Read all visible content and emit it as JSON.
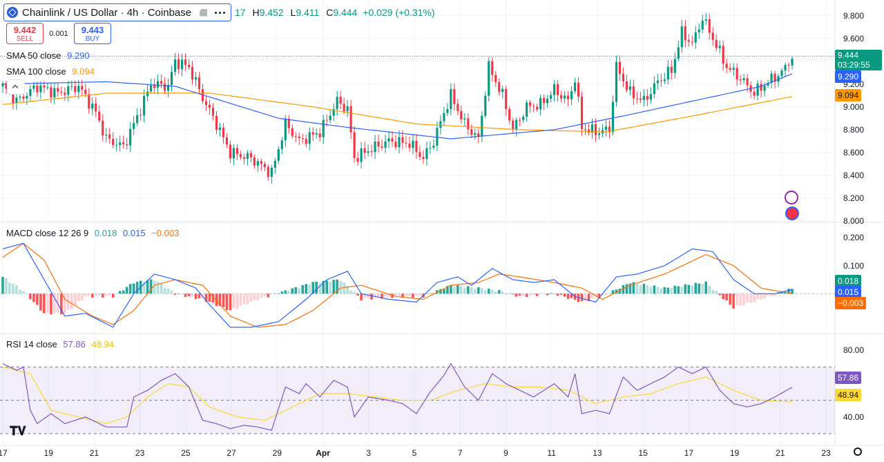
{
  "header": {
    "symbol_title": "Chainlink / US Dollar · 4h · Coinbase",
    "ohlc_tail": "17",
    "high_label": "H",
    "high": "9.452",
    "low_label": "L",
    "low": "9.411",
    "close_label": "C",
    "close": "9.444",
    "change": "+0.029 (+0.31%)"
  },
  "trade": {
    "sell_price": "9.442",
    "sell_label": "SELL",
    "spread": "0.001",
    "buy_price": "9.443",
    "buy_label": "BUY"
  },
  "indicators": {
    "sma50_label": "SMA 50 close",
    "sma50_value": "9.290",
    "sma100_label": "SMA 100 close",
    "sma100_value": "9.094",
    "macd_label": "MACD close 12 26 9",
    "macd_hist": "0.018",
    "macd_line": "0.015",
    "macd_signal": "−0.003",
    "rsi_label": "RSI 14 close",
    "rsi_value": "57.86",
    "rsi_ma": "48.94"
  },
  "price_badge": {
    "price": "9.444",
    "countdown": "03:29:55"
  },
  "colors": {
    "up": "#089981",
    "down": "#f23645",
    "sma50": "#2962ff",
    "sma100": "#ff9800",
    "macd": "#2962ff",
    "signal": "#ff6d00",
    "rsi": "#7e57c2",
    "rsi_ma": "#fdd835"
  },
  "chart_data": [
    {
      "type": "candlestick",
      "title": "Chainlink / US Dollar · 4h · Coinbase",
      "ylim": [
        8.0,
        9.9
      ],
      "y_ticks": [
        "9.800",
        "9.600",
        "9.400",
        "9.200",
        "9.000",
        "8.800",
        "8.600",
        "8.400",
        "8.200",
        "8.000"
      ],
      "x_ticks": [
        "17",
        "19",
        "21",
        "23",
        "25",
        "27",
        "29",
        "Apr",
        "3",
        "5",
        "7",
        "9",
        "11",
        "13",
        "15",
        "17",
        "19",
        "21",
        "23"
      ],
      "anchors": [
        [
          0,
          9.18
        ],
        [
          4,
          9.05
        ],
        [
          10,
          9.18
        ],
        [
          16,
          9.12
        ],
        [
          22,
          9.18
        ],
        [
          27,
          8.95
        ],
        [
          30,
          8.72
        ],
        [
          35,
          8.65
        ],
        [
          40,
          8.98
        ],
        [
          43,
          9.2
        ],
        [
          48,
          9.18
        ],
        [
          50,
          9.4
        ],
        [
          54,
          9.35
        ],
        [
          58,
          9.08
        ],
        [
          62,
          8.85
        ],
        [
          66,
          8.6
        ],
        [
          72,
          8.55
        ],
        [
          78,
          8.42
        ],
        [
          82,
          8.85
        ],
        [
          86,
          8.7
        ],
        [
          92,
          8.78
        ],
        [
          97,
          9.05
        ],
        [
          100,
          8.98
        ],
        [
          102,
          8.55
        ],
        [
          106,
          8.62
        ],
        [
          112,
          8.7
        ],
        [
          118,
          8.68
        ],
        [
          122,
          8.55
        ],
        [
          125,
          8.7
        ],
        [
          128,
          8.95
        ],
        [
          130,
          9.1
        ],
        [
          134,
          8.85
        ],
        [
          138,
          8.72
        ],
        [
          141,
          9.35
        ],
        [
          145,
          9.1
        ],
        [
          148,
          8.8
        ],
        [
          152,
          9.0
        ],
        [
          156,
          9.02
        ],
        [
          160,
          9.15
        ],
        [
          164,
          9.05
        ],
        [
          166,
          9.25
        ],
        [
          168,
          8.82
        ],
        [
          172,
          8.78
        ],
        [
          176,
          8.8
        ],
        [
          178,
          9.35
        ],
        [
          182,
          9.12
        ],
        [
          186,
          9.05
        ],
        [
          190,
          9.22
        ],
        [
          194,
          9.32
        ],
        [
          197,
          9.65
        ],
        [
          200,
          9.55
        ],
        [
          203,
          9.78
        ],
        [
          206,
          9.6
        ],
        [
          210,
          9.35
        ],
        [
          214,
          9.25
        ],
        [
          218,
          9.12
        ],
        [
          222,
          9.22
        ],
        [
          226,
          9.3
        ],
        [
          229,
          9.44
        ]
      ],
      "sma50": [
        [
          0,
          9.2
        ],
        [
          30,
          9.22
        ],
        [
          50,
          9.18
        ],
        [
          80,
          8.9
        ],
        [
          100,
          8.82
        ],
        [
          130,
          8.72
        ],
        [
          160,
          8.8
        ],
        [
          180,
          8.92
        ],
        [
          200,
          9.05
        ],
        [
          220,
          9.18
        ],
        [
          229,
          9.29
        ]
      ],
      "sma100": [
        [
          0,
          9.02
        ],
        [
          30,
          9.12
        ],
        [
          60,
          9.12
        ],
        [
          90,
          9.0
        ],
        [
          120,
          8.85
        ],
        [
          150,
          8.8
        ],
        [
          175,
          8.78
        ],
        [
          200,
          8.92
        ],
        [
          229,
          9.09
        ]
      ]
    },
    {
      "type": "macd",
      "ylim": [
        -0.13,
        0.23
      ],
      "y_ticks": [
        "0.200",
        "0.100"
      ],
      "macd_line": [
        [
          0,
          0.16
        ],
        [
          6,
          0.18
        ],
        [
          12,
          0.05
        ],
        [
          18,
          -0.08
        ],
        [
          24,
          -0.07
        ],
        [
          32,
          -0.12
        ],
        [
          38,
          0.0
        ],
        [
          44,
          0.07
        ],
        [
          50,
          0.05
        ],
        [
          56,
          0.02
        ],
        [
          60,
          -0.04
        ],
        [
          66,
          -0.12
        ],
        [
          72,
          -0.12
        ],
        [
          80,
          -0.1
        ],
        [
          88,
          -0.02
        ],
        [
          94,
          0.05
        ],
        [
          100,
          0.08
        ],
        [
          104,
          0.0
        ],
        [
          112,
          -0.02
        ],
        [
          120,
          -0.03
        ],
        [
          126,
          0.04
        ],
        [
          132,
          0.06
        ],
        [
          136,
          0.03
        ],
        [
          142,
          0.09
        ],
        [
          148,
          0.05
        ],
        [
          154,
          0.04
        ],
        [
          160,
          0.05
        ],
        [
          166,
          -0.01
        ],
        [
          172,
          -0.03
        ],
        [
          178,
          0.06
        ],
        [
          184,
          0.07
        ],
        [
          192,
          0.1
        ],
        [
          200,
          0.16
        ],
        [
          206,
          0.15
        ],
        [
          212,
          0.05
        ],
        [
          218,
          0.0
        ],
        [
          224,
          0.0
        ],
        [
          229,
          0.015
        ]
      ],
      "signal_line": [
        [
          0,
          0.13
        ],
        [
          6,
          0.18
        ],
        [
          12,
          0.12
        ],
        [
          18,
          -0.02
        ],
        [
          26,
          -0.08
        ],
        [
          32,
          -0.11
        ],
        [
          38,
          -0.06
        ],
        [
          44,
          0.03
        ],
        [
          50,
          0.05
        ],
        [
          58,
          0.03
        ],
        [
          66,
          -0.08
        ],
        [
          74,
          -0.12
        ],
        [
          82,
          -0.11
        ],
        [
          90,
          -0.06
        ],
        [
          98,
          0.02
        ],
        [
          104,
          0.03
        ],
        [
          114,
          -0.01
        ],
        [
          122,
          -0.02
        ],
        [
          130,
          0.03
        ],
        [
          138,
          0.04
        ],
        [
          144,
          0.07
        ],
        [
          150,
          0.06
        ],
        [
          160,
          0.04
        ],
        [
          168,
          0.02
        ],
        [
          174,
          -0.02
        ],
        [
          182,
          0.03
        ],
        [
          192,
          0.07
        ],
        [
          204,
          0.14
        ],
        [
          212,
          0.1
        ],
        [
          220,
          0.02
        ],
        [
          229,
          0.0
        ]
      ],
      "histogram": [
        [
          0,
          0.06
        ],
        [
          6,
          0.01
        ],
        [
          12,
          -0.07
        ],
        [
          18,
          -0.07
        ],
        [
          24,
          -0.01
        ],
        [
          32,
          -0.01
        ],
        [
          38,
          0.04
        ],
        [
          44,
          0.05
        ],
        [
          50,
          0.0
        ],
        [
          58,
          -0.02
        ],
        [
          66,
          -0.06
        ],
        [
          74,
          -0.02
        ],
        [
          82,
          0.01
        ],
        [
          90,
          0.04
        ],
        [
          98,
          0.05
        ],
        [
          104,
          -0.02
        ],
        [
          114,
          -0.01
        ],
        [
          122,
          -0.01
        ],
        [
          130,
          0.03
        ],
        [
          138,
          0.02
        ],
        [
          144,
          0.01
        ],
        [
          150,
          -0.01
        ],
        [
          160,
          0.0
        ],
        [
          168,
          -0.03
        ],
        [
          174,
          -0.01
        ],
        [
          182,
          0.04
        ],
        [
          192,
          0.02
        ],
        [
          204,
          0.04
        ],
        [
          212,
          -0.05
        ],
        [
          220,
          -0.02
        ],
        [
          229,
          0.018
        ]
      ]
    },
    {
      "type": "line",
      "ylim": [
        25,
        88
      ],
      "y_ticks": [
        "80.00",
        "40.00"
      ],
      "bands": [
        70,
        50,
        30
      ],
      "rsi": [
        [
          0,
          72
        ],
        [
          4,
          68
        ],
        [
          6,
          70
        ],
        [
          8,
          44
        ],
        [
          10,
          36
        ],
        [
          14,
          42
        ],
        [
          18,
          36
        ],
        [
          24,
          40
        ],
        [
          30,
          34
        ],
        [
          36,
          34
        ],
        [
          38,
          52
        ],
        [
          42,
          56
        ],
        [
          46,
          62
        ],
        [
          50,
          66
        ],
        [
          54,
          58
        ],
        [
          58,
          38
        ],
        [
          62,
          36
        ],
        [
          66,
          33
        ],
        [
          70,
          35
        ],
        [
          74,
          34
        ],
        [
          78,
          32
        ],
        [
          82,
          58
        ],
        [
          86,
          54
        ],
        [
          88,
          60
        ],
        [
          92,
          52
        ],
        [
          96,
          62
        ],
        [
          100,
          58
        ],
        [
          102,
          40
        ],
        [
          106,
          52
        ],
        [
          112,
          50
        ],
        [
          116,
          48
        ],
        [
          120,
          42
        ],
        [
          124,
          55
        ],
        [
          128,
          65
        ],
        [
          130,
          72
        ],
        [
          134,
          58
        ],
        [
          138,
          50
        ],
        [
          142,
          66
        ],
        [
          146,
          60
        ],
        [
          150,
          56
        ],
        [
          154,
          52
        ],
        [
          160,
          60
        ],
        [
          164,
          52
        ],
        [
          166,
          66
        ],
        [
          168,
          42
        ],
        [
          172,
          44
        ],
        [
          176,
          42
        ],
        [
          180,
          64
        ],
        [
          184,
          56
        ],
        [
          188,
          60
        ],
        [
          192,
          64
        ],
        [
          196,
          70
        ],
        [
          200,
          66
        ],
        [
          204,
          70
        ],
        [
          208,
          56
        ],
        [
          212,
          48
        ],
        [
          216,
          46
        ],
        [
          220,
          48
        ],
        [
          224,
          52
        ],
        [
          229,
          57.86
        ]
      ],
      "rsi_ma": [
        [
          0,
          70
        ],
        [
          8,
          66
        ],
        [
          14,
          44
        ],
        [
          22,
          40
        ],
        [
          30,
          36
        ],
        [
          36,
          40
        ],
        [
          42,
          52
        ],
        [
          48,
          60
        ],
        [
          54,
          58
        ],
        [
          60,
          46
        ],
        [
          68,
          40
        ],
        [
          76,
          38
        ],
        [
          84,
          46
        ],
        [
          92,
          54
        ],
        [
          100,
          54
        ],
        [
          108,
          52
        ],
        [
          116,
          50
        ],
        [
          124,
          50
        ],
        [
          132,
          56
        ],
        [
          140,
          60
        ],
        [
          148,
          58
        ],
        [
          156,
          58
        ],
        [
          164,
          56
        ],
        [
          172,
          48
        ],
        [
          180,
          52
        ],
        [
          188,
          54
        ],
        [
          196,
          60
        ],
        [
          204,
          64
        ],
        [
          212,
          56
        ],
        [
          220,
          50
        ],
        [
          229,
          48.94
        ]
      ]
    }
  ]
}
